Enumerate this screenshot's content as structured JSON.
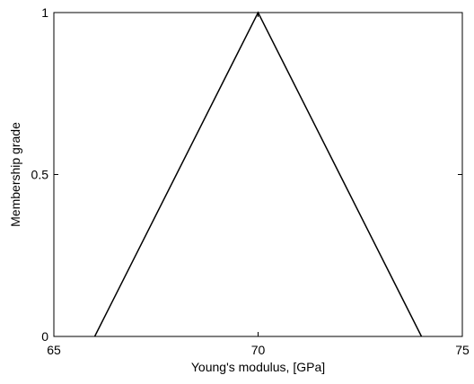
{
  "chart_data": {
    "type": "line",
    "x_label": "Young's modulus, [GPa]",
    "y_label": "Membership grade",
    "x": [
      66,
      70,
      74
    ],
    "series": [
      {
        "color": "#000000",
        "values": [
          0,
          1,
          0
        ]
      }
    ],
    "xlim": [
      65,
      75
    ],
    "xticks": [
      65,
      70,
      75
    ],
    "ylim": [
      0,
      1
    ],
    "yticks": [
      0,
      0.5,
      1
    ],
    "grid": false
  }
}
